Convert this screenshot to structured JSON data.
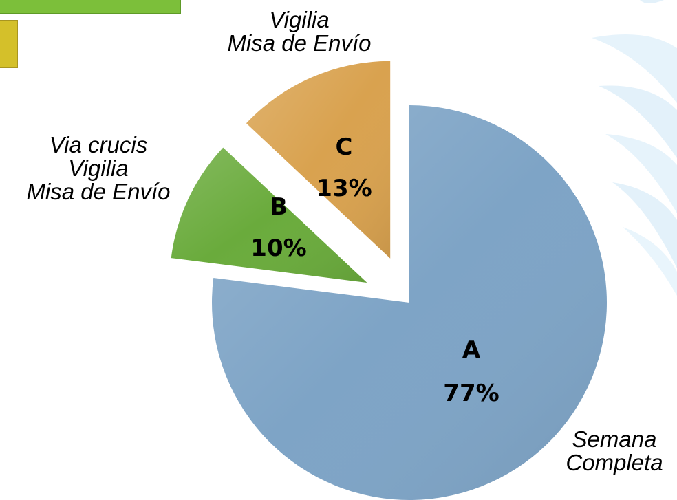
{
  "chart_data": {
    "type": "pie",
    "categories": [
      "A",
      "B",
      "C"
    ],
    "values": [
      77,
      10,
      13
    ],
    "value_labels": [
      "77%",
      "10%",
      "13%"
    ],
    "descriptions": [
      [
        "Semana",
        "Completa"
      ],
      [
        "Via crucis",
        "Vigilia",
        "Misa de Envío"
      ],
      [
        "Vigilia",
        "Misa de Envío"
      ]
    ],
    "colors": [
      "#7ea4c6",
      "#6aab3c",
      "#d9a24f"
    ]
  }
}
